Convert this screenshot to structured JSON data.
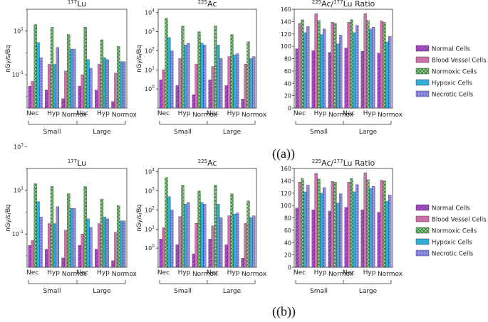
{
  "panels": [
    {
      "caption": "((a))"
    },
    {
      "caption": "((b))"
    }
  ],
  "legend": {
    "entries": [
      "Normal Cells",
      "Blood Vessel Cells",
      "Normoxic Cells",
      "Hypoxic Cells",
      "Necrotic Cells"
    ],
    "colors": [
      "#a64fc8",
      "#cf6fac",
      "#8fd08f",
      "#2eaed8",
      "#8f8fe8"
    ],
    "patterns": [
      "diag",
      "none",
      "cross",
      "none",
      "dots"
    ]
  },
  "groups": {
    "small_label": "Small",
    "large_label": "Large",
    "size_groups": [
      "Small",
      "Large"
    ]
  },
  "chart_data": [
    {
      "type": "bar",
      "panel": "a",
      "title_sup": "177",
      "title_main": "Lu",
      "scale": "log",
      "ylabel": "nGy/s/Bq",
      "ylim": [
        0.003,
        100
      ],
      "yticks": [
        {
          "v": 0.1,
          "b": "10",
          "e": "-1"
        },
        {
          "v": 10,
          "b": "10",
          "e": "1"
        },
        {
          "v": 1000,
          "b": "10",
          "e": "3"
        }
      ],
      "categories": [
        "Nec",
        "Hyp",
        "Normox",
        "Nec",
        "Hyp",
        "Normox"
      ],
      "series": [
        {
          "name": "Normal Cells",
          "values": [
            0.03,
            0.02,
            0.008,
            0.03,
            0.02,
            0.006
          ]
        },
        {
          "name": "Blood Vessel Cells",
          "values": [
            0.05,
            0.3,
            0.15,
            0.1,
            0.3,
            0.12
          ]
        },
        {
          "name": "Normoxic Cells",
          "values": [
            20,
            15,
            7,
            15,
            4,
            2
          ]
        },
        {
          "name": "Hypoxic Cells",
          "values": [
            3,
            0.3,
            1.5,
            0.5,
            0.6,
            0.4
          ]
        },
        {
          "name": "Necrotic Cells",
          "values": [
            0.6,
            1.8,
            1.5,
            0.2,
            0.5,
            0.4
          ]
        }
      ]
    },
    {
      "type": "bar",
      "panel": "a",
      "title_sup": "225",
      "title_main": "Ac",
      "scale": "log",
      "ylabel": "nGy/s/Bq",
      "ylim": [
        0.1,
        15000
      ],
      "yticks": [
        {
          "v": 1,
          "b": "10",
          "e": "0"
        },
        {
          "v": 10,
          "b": "10",
          "e": "1"
        },
        {
          "v": 100,
          "b": "10",
          "e": "2"
        },
        {
          "v": 1000,
          "b": "10",
          "e": "3"
        },
        {
          "v": 10000,
          "b": "10",
          "e": "4"
        }
      ],
      "categories": [
        "Nec",
        "Hyp",
        "Normox",
        "Nec",
        "Hyp",
        "Normox"
      ],
      "series": [
        {
          "name": "Normal Cells",
          "values": [
            3,
            1.5,
            0.5,
            3,
            1.5,
            0.3
          ]
        },
        {
          "name": "Blood Vessel Cells",
          "values": [
            10,
            40,
            20,
            15,
            50,
            20
          ]
        },
        {
          "name": "Normoxic Cells",
          "values": [
            5000,
            2000,
            1000,
            2000,
            700,
            300
          ]
        },
        {
          "name": "Hypoxic Cells",
          "values": [
            500,
            200,
            250,
            200,
            60,
            40
          ]
        },
        {
          "name": "Necrotic Cells",
          "values": [
            100,
            250,
            200,
            40,
            70,
            50
          ]
        }
      ]
    },
    {
      "type": "bar",
      "panel": "a",
      "title_sup1": "225",
      "title_mid": "Ac/",
      "title_sup2": "177",
      "title_end": "Lu Ratio",
      "scale": "linear",
      "ylabel": "",
      "ylim": [
        0,
        160
      ],
      "yticks": [
        {
          "v": 0,
          "t": "0"
        },
        {
          "v": 20,
          "t": "20"
        },
        {
          "v": 40,
          "t": "40"
        },
        {
          "v": 60,
          "t": "60"
        },
        {
          "v": 80,
          "t": "80"
        },
        {
          "v": 100,
          "t": "100"
        },
        {
          "v": 120,
          "t": "120"
        },
        {
          "v": 140,
          "t": "140"
        },
        {
          "v": 160,
          "t": "160"
        }
      ],
      "categories": [
        "Nec",
        "Hyp",
        "Normox",
        "Nec",
        "Hyp",
        "Normox"
      ],
      "series": [
        {
          "name": "Normal Cells",
          "values": [
            96,
            93,
            90,
            97,
            92,
            89
          ]
        },
        {
          "name": "Blood Vessel Cells",
          "values": [
            137,
            153,
            139,
            139,
            153,
            141
          ]
        },
        {
          "name": "Normoxic Cells",
          "values": [
            143,
            142,
            137,
            143,
            142,
            139
          ]
        },
        {
          "name": "Hypoxic Cells",
          "values": [
            122,
            119,
            104,
            122,
            128,
            107
          ]
        },
        {
          "name": "Necrotic Cells",
          "values": [
            132,
            128,
            118,
            134,
            131,
            116
          ]
        }
      ]
    },
    {
      "type": "bar",
      "panel": "b",
      "title_sup": "177",
      "title_main": "Lu",
      "scale": "log",
      "ylabel": "nGy/s/Bq",
      "ylim": [
        0.003,
        100
      ],
      "yticks": [
        {
          "v": 0.1,
          "b": "10",
          "e": "-1"
        },
        {
          "v": 10,
          "b": "10",
          "e": "1"
        },
        {
          "v": 1000,
          "b": "10",
          "e": "3"
        }
      ],
      "categories": [
        "Nec",
        "Hyp",
        "Normox",
        "Nec",
        "Hyp",
        "Normox"
      ],
      "series": [
        {
          "name": "Normal Cells",
          "values": [
            0.03,
            0.02,
            0.008,
            0.03,
            0.02,
            0.006
          ]
        },
        {
          "name": "Blood Vessel Cells",
          "values": [
            0.05,
            0.3,
            0.15,
            0.1,
            0.3,
            0.12
          ]
        },
        {
          "name": "Normoxic Cells",
          "values": [
            20,
            15,
            7,
            15,
            4,
            2
          ]
        },
        {
          "name": "Hypoxic Cells",
          "values": [
            3,
            0.3,
            1.5,
            0.5,
            0.6,
            0.4
          ]
        },
        {
          "name": "Necrotic Cells",
          "values": [
            0.6,
            1.8,
            1.5,
            0.2,
            0.5,
            0.4
          ]
        }
      ]
    },
    {
      "type": "bar",
      "panel": "b",
      "title_sup": "225",
      "title_main": "Ac",
      "scale": "log",
      "ylabel": "nGy/s/Bq",
      "ylim": [
        0.1,
        15000
      ],
      "yticks": [
        {
          "v": 1,
          "b": "10",
          "e": "0"
        },
        {
          "v": 10,
          "b": "10",
          "e": "1"
        },
        {
          "v": 100,
          "b": "10",
          "e": "2"
        },
        {
          "v": 1000,
          "b": "10",
          "e": "3"
        },
        {
          "v": 10000,
          "b": "10",
          "e": "4"
        }
      ],
      "categories": [
        "Nec",
        "Hyp",
        "Normox",
        "Nec",
        "Hyp",
        "Normox"
      ],
      "series": [
        {
          "name": "Normal Cells",
          "values": [
            3,
            1.5,
            0.5,
            3,
            1.5,
            0.3
          ]
        },
        {
          "name": "Blood Vessel Cells",
          "values": [
            12,
            45,
            20,
            15,
            50,
            20
          ]
        },
        {
          "name": "Normoxic Cells",
          "values": [
            5000,
            2000,
            1000,
            2000,
            700,
            300
          ]
        },
        {
          "name": "Hypoxic Cells",
          "values": [
            500,
            200,
            250,
            200,
            60,
            40
          ]
        },
        {
          "name": "Necrotic Cells",
          "values": [
            100,
            250,
            200,
            40,
            70,
            50
          ]
        }
      ]
    },
    {
      "type": "bar",
      "panel": "b",
      "title_sup1": "225",
      "title_mid": "Ac/",
      "title_sup2": "177",
      "title_end": "Lu Ratio",
      "scale": "linear",
      "ylabel": "",
      "ylim": [
        0,
        160
      ],
      "yticks": [
        {
          "v": 0,
          "t": "0"
        },
        {
          "v": 20,
          "t": "20"
        },
        {
          "v": 40,
          "t": "40"
        },
        {
          "v": 60,
          "t": "60"
        },
        {
          "v": 80,
          "t": "80"
        },
        {
          "v": 100,
          "t": "100"
        },
        {
          "v": 120,
          "t": "120"
        },
        {
          "v": 140,
          "t": "140"
        },
        {
          "v": 160,
          "t": "160"
        }
      ],
      "categories": [
        "Nec",
        "Hyp",
        "Normox",
        "Nec",
        "Hyp",
        "Normox"
      ],
      "series": [
        {
          "name": "Normal Cells",
          "values": [
            96,
            93,
            91,
            97,
            93,
            89
          ]
        },
        {
          "name": "Blood Vessel Cells",
          "values": [
            138,
            152,
            139,
            138,
            153,
            141
          ]
        },
        {
          "name": "Normoxic Cells",
          "values": [
            144,
            143,
            138,
            144,
            142,
            140
          ]
        },
        {
          "name": "Hypoxic Cells",
          "values": [
            122,
            120,
            104,
            122,
            128,
            107
          ]
        },
        {
          "name": "Necrotic Cells",
          "values": [
            133,
            129,
            119,
            134,
            131,
            117
          ]
        }
      ]
    }
  ]
}
